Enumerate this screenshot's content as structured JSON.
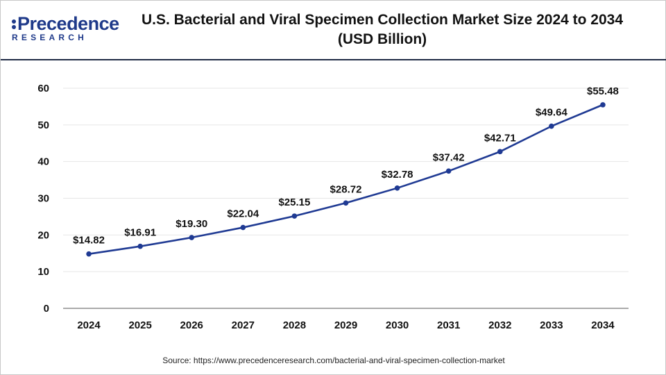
{
  "header": {
    "logo_main": "Precedence",
    "logo_sub": "RESEARCH",
    "title_line1": "U.S. Bacterial and Viral Specimen Collection Market Size 2024 to 2034",
    "title_line2": "(USD Billion)"
  },
  "source": "Source: https://www.precedenceresearch.com/bacterial-and-viral-specimen-collection-market",
  "colors": {
    "line": "#1f3a93",
    "brand": "#1f3a8a",
    "grid": "#e6e6e6",
    "axis": "#555555"
  },
  "chart_data": {
    "type": "line",
    "title": "U.S. Bacterial and Viral Specimen Collection Market Size 2024 to 2034 (USD Billion)",
    "categories": [
      "2024",
      "2025",
      "2026",
      "2027",
      "2028",
      "2029",
      "2030",
      "2031",
      "2032",
      "2033",
      "2034"
    ],
    "values": [
      14.82,
      16.91,
      19.3,
      22.04,
      25.15,
      28.72,
      32.78,
      37.42,
      42.71,
      49.64,
      55.48
    ],
    "data_labels": [
      "$14.82",
      "$16.91",
      "$19.30",
      "$22.04",
      "$25.15",
      "$28.72",
      "$32.78",
      "$37.42",
      "$42.71",
      "$49.64",
      "$55.48"
    ],
    "yticks": [
      "0",
      "10",
      "20",
      "30",
      "40",
      "50",
      "60"
    ],
    "ylim": [
      0,
      60
    ],
    "grid": true,
    "legend": "none"
  }
}
